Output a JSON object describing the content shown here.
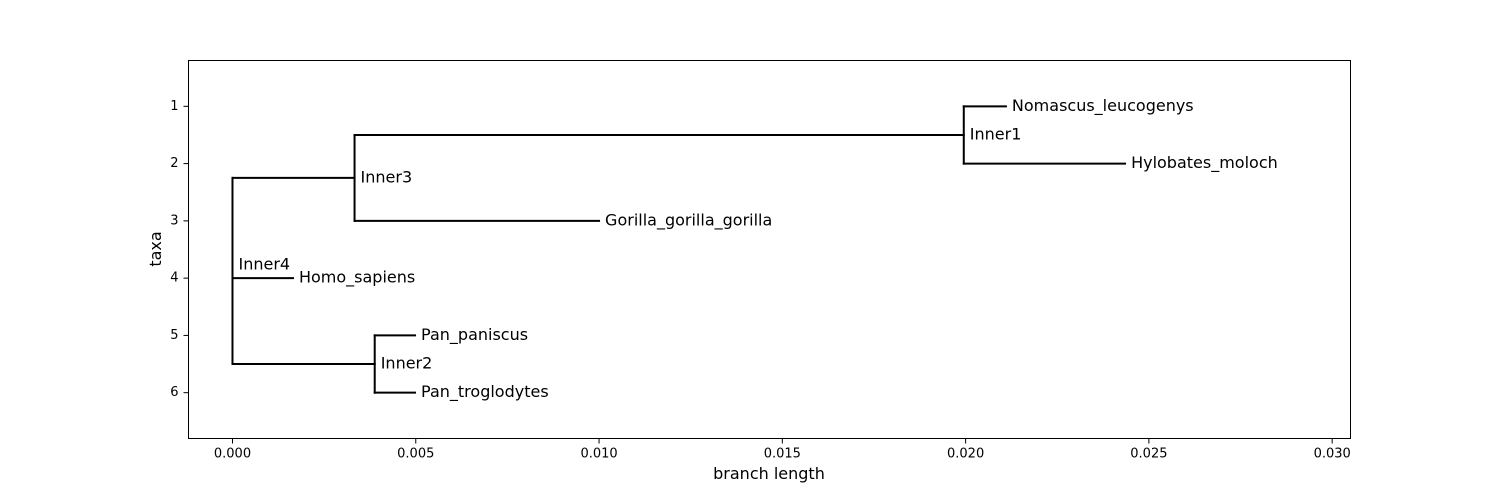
{
  "chart_data": {
    "type": "phylogenetic-tree",
    "xlabel": "branch length",
    "ylabel": "taxa",
    "xlim": [
      -0.0012,
      0.0305
    ],
    "ylim": [
      6.8,
      0.2
    ],
    "x_ticks": [
      0.0,
      0.005,
      0.01,
      0.015,
      0.02,
      0.025,
      0.03
    ],
    "x_tick_labels": [
      "0.000",
      "0.005",
      "0.010",
      "0.015",
      "0.020",
      "0.025",
      "0.030"
    ],
    "y_ticks": [
      1,
      2,
      3,
      4,
      5,
      6
    ],
    "y_tick_labels": [
      "1",
      "2",
      "3",
      "4",
      "5",
      "6"
    ],
    "grid": false,
    "nodes": [
      {
        "id": "Inner4",
        "label": "Inner4",
        "parent": null,
        "x": 0.0,
        "y": 3.875
      },
      {
        "id": "Inner3",
        "label": "Inner3",
        "parent": "Inner4",
        "x": 0.00333,
        "y": 2.25
      },
      {
        "id": "Homo_sapiens",
        "label": "Homo_sapiens",
        "parent": "Inner4",
        "x": 0.00165,
        "y": 4
      },
      {
        "id": "Inner2",
        "label": "Inner2",
        "parent": "Inner4",
        "x": 0.00388,
        "y": 5.5
      },
      {
        "id": "Inner1",
        "label": "Inner1",
        "parent": "Inner3",
        "x": 0.01995,
        "y": 1.5
      },
      {
        "id": "Gorilla_gorilla_gorilla",
        "label": "Gorilla_gorilla_gorilla",
        "parent": "Inner3",
        "x": 0.01,
        "y": 3
      },
      {
        "id": "Nomascus_leucogenys",
        "label": "Nomascus_leucogenys",
        "parent": "Inner1",
        "x": 0.0211,
        "y": 1
      },
      {
        "id": "Hylobates_moloch",
        "label": "Hylobates_moloch",
        "parent": "Inner1",
        "x": 0.02435,
        "y": 2
      },
      {
        "id": "Pan_paniscus",
        "label": "Pan_paniscus",
        "parent": "Inner2",
        "x": 0.00498,
        "y": 5
      },
      {
        "id": "Pan_troglodytes",
        "label": "Pan_troglodytes",
        "parent": "Inner2",
        "x": 0.00498,
        "y": 6
      }
    ]
  }
}
